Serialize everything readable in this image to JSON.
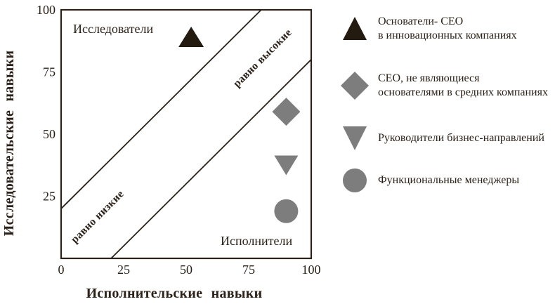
{
  "colors": {
    "ink": "#2b2118",
    "marker_black": "#231a10",
    "marker_gray": "#7d7d7d",
    "background": "#ffffff"
  },
  "chart_data": {
    "type": "scatter",
    "title": "",
    "xlabel": "Исполнительские навыки",
    "ylabel": "Исследовательские навыки",
    "xlim": [
      0,
      100
    ],
    "ylim": [
      0,
      100
    ],
    "grid": false,
    "frame": "box",
    "x_ticks": [
      0,
      25,
      50,
      75,
      100
    ],
    "x_tick_labels": [
      "0",
      "25",
      "50",
      "75",
      "100"
    ],
    "y_ticks": [
      25,
      50,
      75,
      100
    ],
    "y_tick_labels": [
      "25",
      "50",
      "75",
      "100"
    ],
    "diagonal_band_lines": [
      {
        "from": [
          0,
          20
        ],
        "to": [
          80,
          100
        ]
      },
      {
        "from": [
          20,
          0
        ],
        "to": [
          100,
          80
        ]
      }
    ],
    "region_labels": {
      "top_left": "Исследователи",
      "bottom_right": "Исполнители",
      "band_upper": "равно высокие",
      "band_lower": "равно низкие"
    },
    "legend_position": "right",
    "series": [
      {
        "name": "Основатели- CEO в инновационных компаниях",
        "marker": "triangle-up",
        "color": "#231a10",
        "points": [
          [
            52,
            89
          ]
        ]
      },
      {
        "name": "CEO, не являющиеся основателями в средних компаниях",
        "marker": "diamond",
        "color": "#7d7d7d",
        "points": [
          [
            90,
            59
          ]
        ]
      },
      {
        "name": "Руководители бизнес-направлений",
        "marker": "triangle-down",
        "color": "#7d7d7d",
        "points": [
          [
            90,
            38
          ]
        ]
      },
      {
        "name": "Функциональные менеджеры",
        "marker": "circle",
        "color": "#7d7d7d",
        "points": [
          [
            90,
            19
          ]
        ]
      }
    ]
  },
  "legend": {
    "items": [
      {
        "marker": "triangle-up",
        "color": "#231a10",
        "lines": [
          "Основатели- CEO",
          "в инновационных компаниях"
        ]
      },
      {
        "marker": "diamond",
        "color": "#7d7d7d",
        "lines": [
          "CEO, не являющиеся",
          "основателями в средних компаниях"
        ]
      },
      {
        "marker": "triangle-down",
        "color": "#7d7d7d",
        "lines": [
          "Руководители бизнес-направлений"
        ]
      },
      {
        "marker": "circle",
        "color": "#7d7d7d",
        "lines": [
          "Функциональные менеджеры"
        ]
      }
    ]
  }
}
